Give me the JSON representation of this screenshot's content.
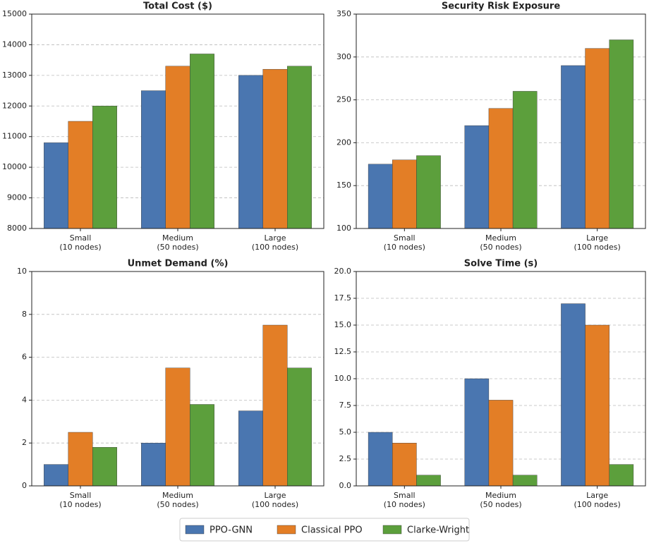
{
  "chart_data": [
    {
      "type": "bar",
      "title": "Total Cost ($)",
      "categories": [
        "Small\n(10 nodes)",
        "Medium\n(50 nodes)",
        "Large\n(100 nodes)"
      ],
      "series": [
        {
          "name": "PPO-GNN",
          "color": "#4a76b0",
          "values": [
            10800,
            12500,
            13000
          ]
        },
        {
          "name": "Classical PPO",
          "color": "#e37e26",
          "values": [
            11500,
            13300,
            13200
          ]
        },
        {
          "name": "Clarke-Wright",
          "color": "#5c9f3c",
          "values": [
            12000,
            13700,
            13300
          ]
        }
      ],
      "ylim": [
        8000,
        15000
      ],
      "yticks": [
        8000,
        9000,
        10000,
        11000,
        12000,
        13000,
        14000,
        15000
      ],
      "grid": true
    },
    {
      "type": "bar",
      "title": "Security Risk Exposure",
      "categories": [
        "Small\n(10 nodes)",
        "Medium\n(50 nodes)",
        "Large\n(100 nodes)"
      ],
      "series": [
        {
          "name": "PPO-GNN",
          "color": "#4a76b0",
          "values": [
            175,
            220,
            290
          ]
        },
        {
          "name": "Classical PPO",
          "color": "#e37e26",
          "values": [
            180,
            240,
            310
          ]
        },
        {
          "name": "Clarke-Wright",
          "color": "#5c9f3c",
          "values": [
            185,
            260,
            320
          ]
        }
      ],
      "ylim": [
        100,
        350
      ],
      "yticks": [
        100,
        150,
        200,
        250,
        300,
        350
      ],
      "grid": true
    },
    {
      "type": "bar",
      "title": "Unmet Demand (%)",
      "categories": [
        "Small\n(10 nodes)",
        "Medium\n(50 nodes)",
        "Large\n(100 nodes)"
      ],
      "series": [
        {
          "name": "PPO-GNN",
          "color": "#4a76b0",
          "values": [
            1,
            2,
            3.5
          ]
        },
        {
          "name": "Classical PPO",
          "color": "#e37e26",
          "values": [
            2.5,
            5.5,
            7.5
          ]
        },
        {
          "name": "Clarke-Wright",
          "color": "#5c9f3c",
          "values": [
            1.8,
            3.8,
            5.5
          ]
        }
      ],
      "ylim": [
        0,
        10
      ],
      "yticks": [
        0,
        2,
        4,
        6,
        8,
        10
      ],
      "grid": true
    },
    {
      "type": "bar",
      "title": "Solve Time (s)",
      "categories": [
        "Small\n(10 nodes)",
        "Medium\n(50 nodes)",
        "Large\n(100 nodes)"
      ],
      "series": [
        {
          "name": "PPO-GNN",
          "color": "#4a76b0",
          "values": [
            5,
            10,
            17
          ]
        },
        {
          "name": "Classical PPO",
          "color": "#e37e26",
          "values": [
            4,
            8,
            15
          ]
        },
        {
          "name": "Clarke-Wright",
          "color": "#5c9f3c",
          "values": [
            1,
            1,
            2
          ]
        }
      ],
      "ylim": [
        0,
        20
      ],
      "yticks": [
        {
          "value": 0,
          "label": "0.0"
        },
        2.5,
        {
          "value": 5,
          "label": "5.0"
        },
        7.5,
        {
          "value": 10,
          "label": "10.0"
        },
        12.5,
        {
          "value": 15,
          "label": "15.0"
        },
        17.5,
        {
          "value": 20,
          "label": "20.0"
        }
      ],
      "grid": true
    }
  ]
}
